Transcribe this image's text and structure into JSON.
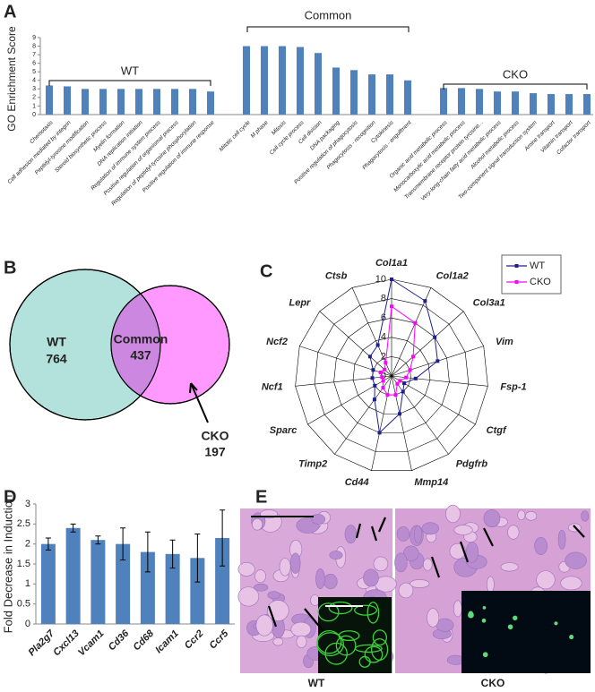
{
  "panels": [
    "A",
    "B",
    "C",
    "D",
    "E"
  ],
  "chart_data": [
    {
      "type": "bar",
      "ylabel": "GO Enrichment Score",
      "color": "#4f81bd",
      "annotations": [
        "WT",
        "Common",
        "CKO"
      ],
      "categories": [
        "Chemotaxis",
        "Cell adhesion mediated by integrin",
        "Peptidyl-tyrosine modification",
        "Steroid biosynthetic process",
        "Myelin formation",
        "DNA replication initiation",
        "Regulation of immune system process",
        "Positive regulation of organismal process",
        "Regulation of peptidyl-tyrosine phosphorylation",
        "Positive regulation of immune response",
        null,
        "Mitotic cell cycle",
        "M phase",
        "Mitosis",
        "Cell cycle process",
        "Cell division",
        "DNA packaging",
        "Positive regulation of phagocytosis",
        "Phagocytosis - recognition",
        "Cytokinesis",
        "Phagocytosis - engulfment",
        null,
        "Organic acid metabolic process",
        "Monocarboxylic acid metabolic process",
        "Transmembrane receptor protein tyrosine...",
        "Very-long-chain fatty acid metabolic process",
        "Alcohol metabolic process",
        "Two-component signal transduction system",
        "Amine transport",
        "Vitamin transport",
        "Cofactor transport"
      ],
      "values": [
        3.4,
        3.3,
        3.0,
        3.0,
        3.0,
        3.0,
        3.0,
        3.0,
        3.0,
        2.7,
        null,
        8.0,
        8.0,
        8.0,
        7.9,
        7.2,
        5.5,
        5.2,
        4.7,
        4.7,
        4.0,
        null,
        3.1,
        3.1,
        3.0,
        2.7,
        2.7,
        2.5,
        2.4,
        2.4,
        2.4
      ],
      "ylim": [
        0,
        9
      ],
      "yticks": [
        0,
        1,
        2,
        3,
        4,
        5,
        6,
        7,
        8,
        9
      ]
    },
    {
      "type": "venn",
      "sets": [
        {
          "name": "WT",
          "value": 764,
          "color": "#b3e2dc"
        },
        {
          "name": "CKO",
          "value": 197,
          "color": "#ff99ff"
        }
      ],
      "intersection": {
        "name": "Common",
        "value": 437,
        "color": "#cc88e0"
      }
    },
    {
      "type": "radar",
      "axes": [
        "Col1a1",
        "Col1a2",
        "Col3a1",
        "Vim",
        "Fsp-1",
        "Ctgf",
        "Pdgfrb",
        "Mmp14",
        "Cd44",
        "Timp2",
        "Sparc",
        "Ncf1",
        "Ncf2",
        "Lepr",
        "Ctsb"
      ],
      "rlim": [
        0,
        10
      ],
      "rticks": [
        0,
        2,
        4,
        6,
        8,
        10
      ],
      "series": [
        {
          "name": "WT",
          "color": "#1f1f8f",
          "values": [
            10,
            8.5,
            6,
            5,
            2.5,
            1.5,
            2,
            4,
            6,
            3,
            2,
            2,
            2,
            3,
            3.5
          ]
        },
        {
          "name": "CKO",
          "color": "#ff00ff",
          "values": [
            7.2,
            6,
            3,
            2,
            1.5,
            1,
            1,
            2,
            2,
            1.5,
            1,
            1,
            1.2,
            1,
            1.5
          ]
        }
      ]
    },
    {
      "type": "bar",
      "ylabel": "Fold Decrease in Induction",
      "color": "#4f81bd",
      "categories": [
        "Pla2g7",
        "Cxcl13",
        "Vcam1",
        "Cd36",
        "Cd68",
        "Icam1",
        "Ccr2",
        "Ccr5"
      ],
      "values": [
        2.0,
        2.4,
        2.1,
        2.0,
        1.8,
        1.75,
        1.65,
        2.15
      ],
      "errors": [
        0.15,
        0.1,
        0.1,
        0.4,
        0.5,
        0.35,
        0.6,
        0.7
      ],
      "ylim": [
        0,
        3
      ],
      "yticks": [
        0,
        0.5,
        1,
        1.5,
        2,
        2.5,
        3
      ]
    }
  ],
  "panel_e": {
    "labels": [
      "WT",
      "CKO"
    ]
  }
}
